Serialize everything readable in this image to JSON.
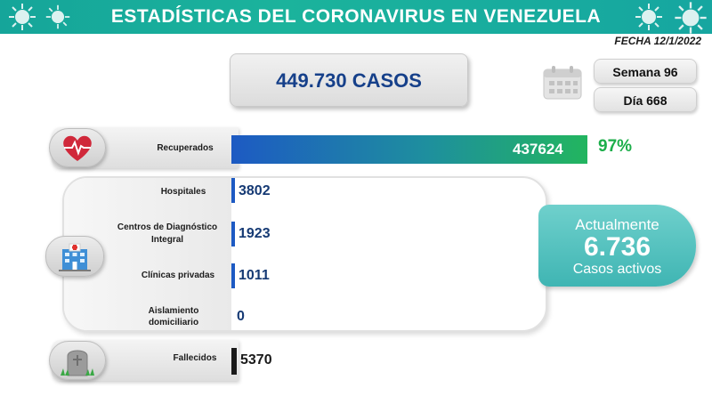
{
  "header": {
    "title": "ESTADÍSTICAS DEL CORONAVIRUS EN VENEZUELA",
    "date": "FECHA 12/1/2022"
  },
  "summary": {
    "total_cases": "449.730 CASOS",
    "week": "Semana 96",
    "day": "Día 668"
  },
  "recovered": {
    "label": "Recuperados",
    "value": "437624",
    "percent": "97%",
    "fraction": 0.97
  },
  "hospital_group": {
    "items": [
      {
        "label": "Hospitales",
        "value": "3802"
      },
      {
        "label": "Centros de Diagnóstico Integral",
        "value": "1923"
      },
      {
        "label": "Clínicas privadas",
        "value": "1011"
      },
      {
        "label": "Aislamiento domiciliario",
        "value": "0"
      }
    ]
  },
  "active": {
    "line1": "Actualmente",
    "count": "6.736",
    "line3": "Casos activos"
  },
  "deaths": {
    "label": "Fallecidos",
    "value": "5370"
  },
  "colors": {
    "banner": "#1bb39c",
    "title_blue": "#16408a",
    "bar_start": "#1d5ac3",
    "bar_end": "#22b55f",
    "percent_green": "#1cae4a",
    "active_bg": "#3fb5b3"
  },
  "icons": {
    "banner": "virus-icon",
    "calendar": "calendar-icon",
    "recovered": "heart-pulse-icon",
    "hospital": "hospital-icon",
    "deaths": "gravestone-icon"
  }
}
